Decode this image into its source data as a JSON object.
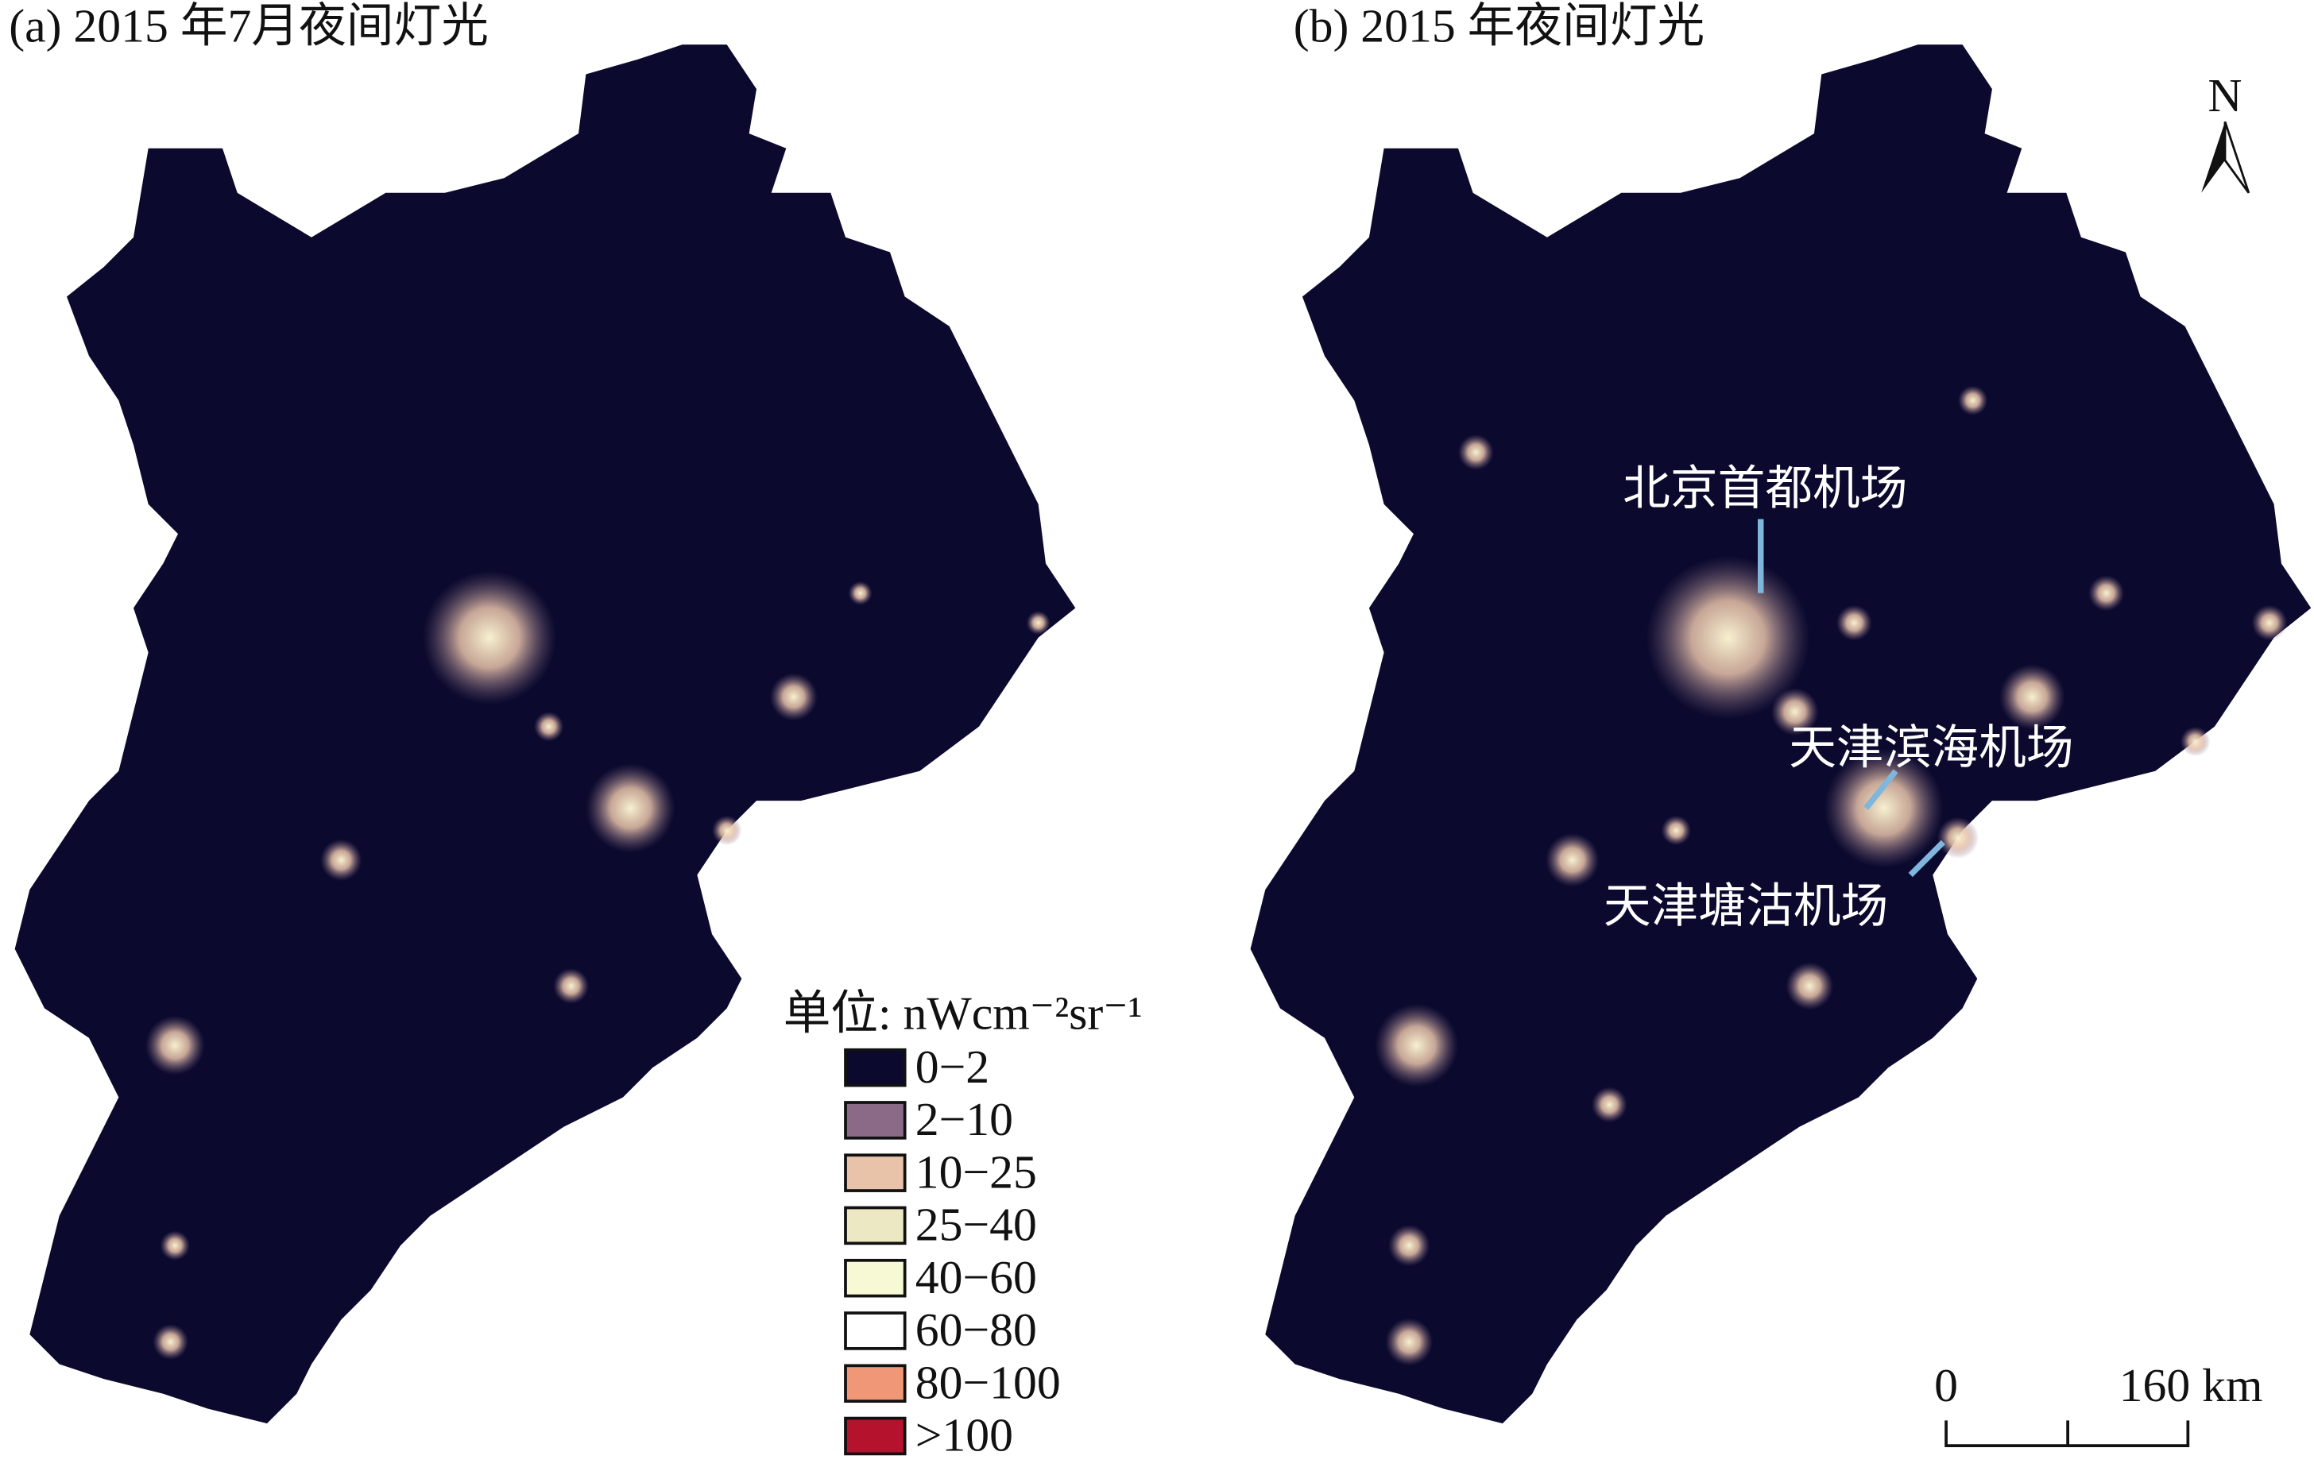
{
  "panels": [
    {
      "title": "(a) 2015 年7月夜间灯光"
    },
    {
      "title": "(b) 2015 年夜间灯光"
    }
  ],
  "annotations": [
    {
      "label": "北京首都机场"
    },
    {
      "label": "天津滨海机场"
    },
    {
      "label": "天津塘沽机场"
    }
  ],
  "legend": {
    "title": "单位: nWcm⁻²sr⁻¹",
    "items": [
      {
        "label": "0−2",
        "color": "#0b0a2e"
      },
      {
        "label": "2−10",
        "color": "#8a6a86"
      },
      {
        "label": "10−25",
        "color": "#e8c2a9"
      },
      {
        "label": "25−40",
        "color": "#ece8c4"
      },
      {
        "label": "40−60",
        "color": "#f7f8d4"
      },
      {
        "label": "60−80",
        "color": "#ffffff"
      },
      {
        "label": "80−100",
        "color": "#ef9777"
      },
      {
        "label": ">100",
        "color": "#b5122d"
      }
    ]
  },
  "north_arrow": {
    "label": "N"
  },
  "scale_bar": {
    "start_label": "0",
    "end_label": "160 km"
  }
}
